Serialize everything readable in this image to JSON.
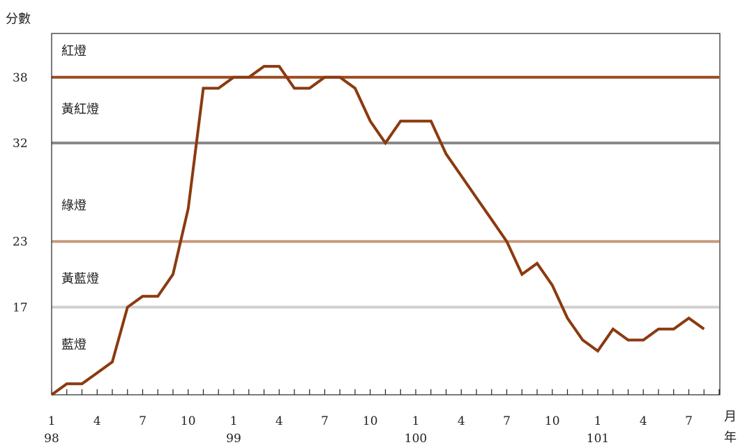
{
  "chart_data": {
    "type": "line",
    "ylabel": "分數",
    "xlabel_month": "月",
    "xlabel_year": "年",
    "ylim": [
      9,
      42
    ],
    "y_ticks": [
      "38",
      "32",
      "23",
      "17"
    ],
    "x_tick_labels": [
      {
        "label": "1",
        "index": 0
      },
      {
        "label": "4",
        "index": 3
      },
      {
        "label": "7",
        "index": 6
      },
      {
        "label": "10",
        "index": 9
      },
      {
        "label": "1",
        "index": 12
      },
      {
        "label": "4",
        "index": 15
      },
      {
        "label": "7",
        "index": 18
      },
      {
        "label": "10",
        "index": 21
      },
      {
        "label": "1",
        "index": 24
      },
      {
        "label": "4",
        "index": 27
      },
      {
        "label": "7",
        "index": 30
      },
      {
        "label": "10",
        "index": 33
      },
      {
        "label": "1",
        "index": 36
      },
      {
        "label": "4",
        "index": 39
      },
      {
        "label": "7",
        "index": 42
      }
    ],
    "year_labels": [
      {
        "label": "98",
        "index": 0
      },
      {
        "label": "99",
        "index": 12
      },
      {
        "label": "100",
        "index": 24
      },
      {
        "label": "101",
        "index": 36
      }
    ],
    "threshold_lines": [
      {
        "value": 38,
        "color": "#9a4a22"
      },
      {
        "value": 32,
        "color": "#8a8a8a"
      },
      {
        "value": 23,
        "color": "#c99a7e"
      },
      {
        "value": 17,
        "color": "#d0d0d0"
      }
    ],
    "zones": [
      {
        "label": "紅燈",
        "value": 40.4
      },
      {
        "label": "黃紅燈",
        "value": 35.1
      },
      {
        "label": "綠燈",
        "value": 26.3
      },
      {
        "label": "黃藍燈",
        "value": 19.6
      },
      {
        "label": "藍燈",
        "value": 13.6
      }
    ],
    "series": [
      {
        "color": "#8b3a10",
        "values": [
          9,
          10,
          10,
          11,
          12,
          17,
          18,
          18,
          20,
          26,
          37,
          37,
          38,
          38,
          39,
          39,
          37,
          37,
          38,
          38,
          37,
          34,
          32,
          34,
          34,
          34,
          31,
          29,
          27,
          25,
          23,
          20,
          21,
          19,
          16,
          14,
          13,
          15,
          14,
          14,
          15,
          15,
          16,
          15
        ]
      }
    ],
    "grid": false
  }
}
